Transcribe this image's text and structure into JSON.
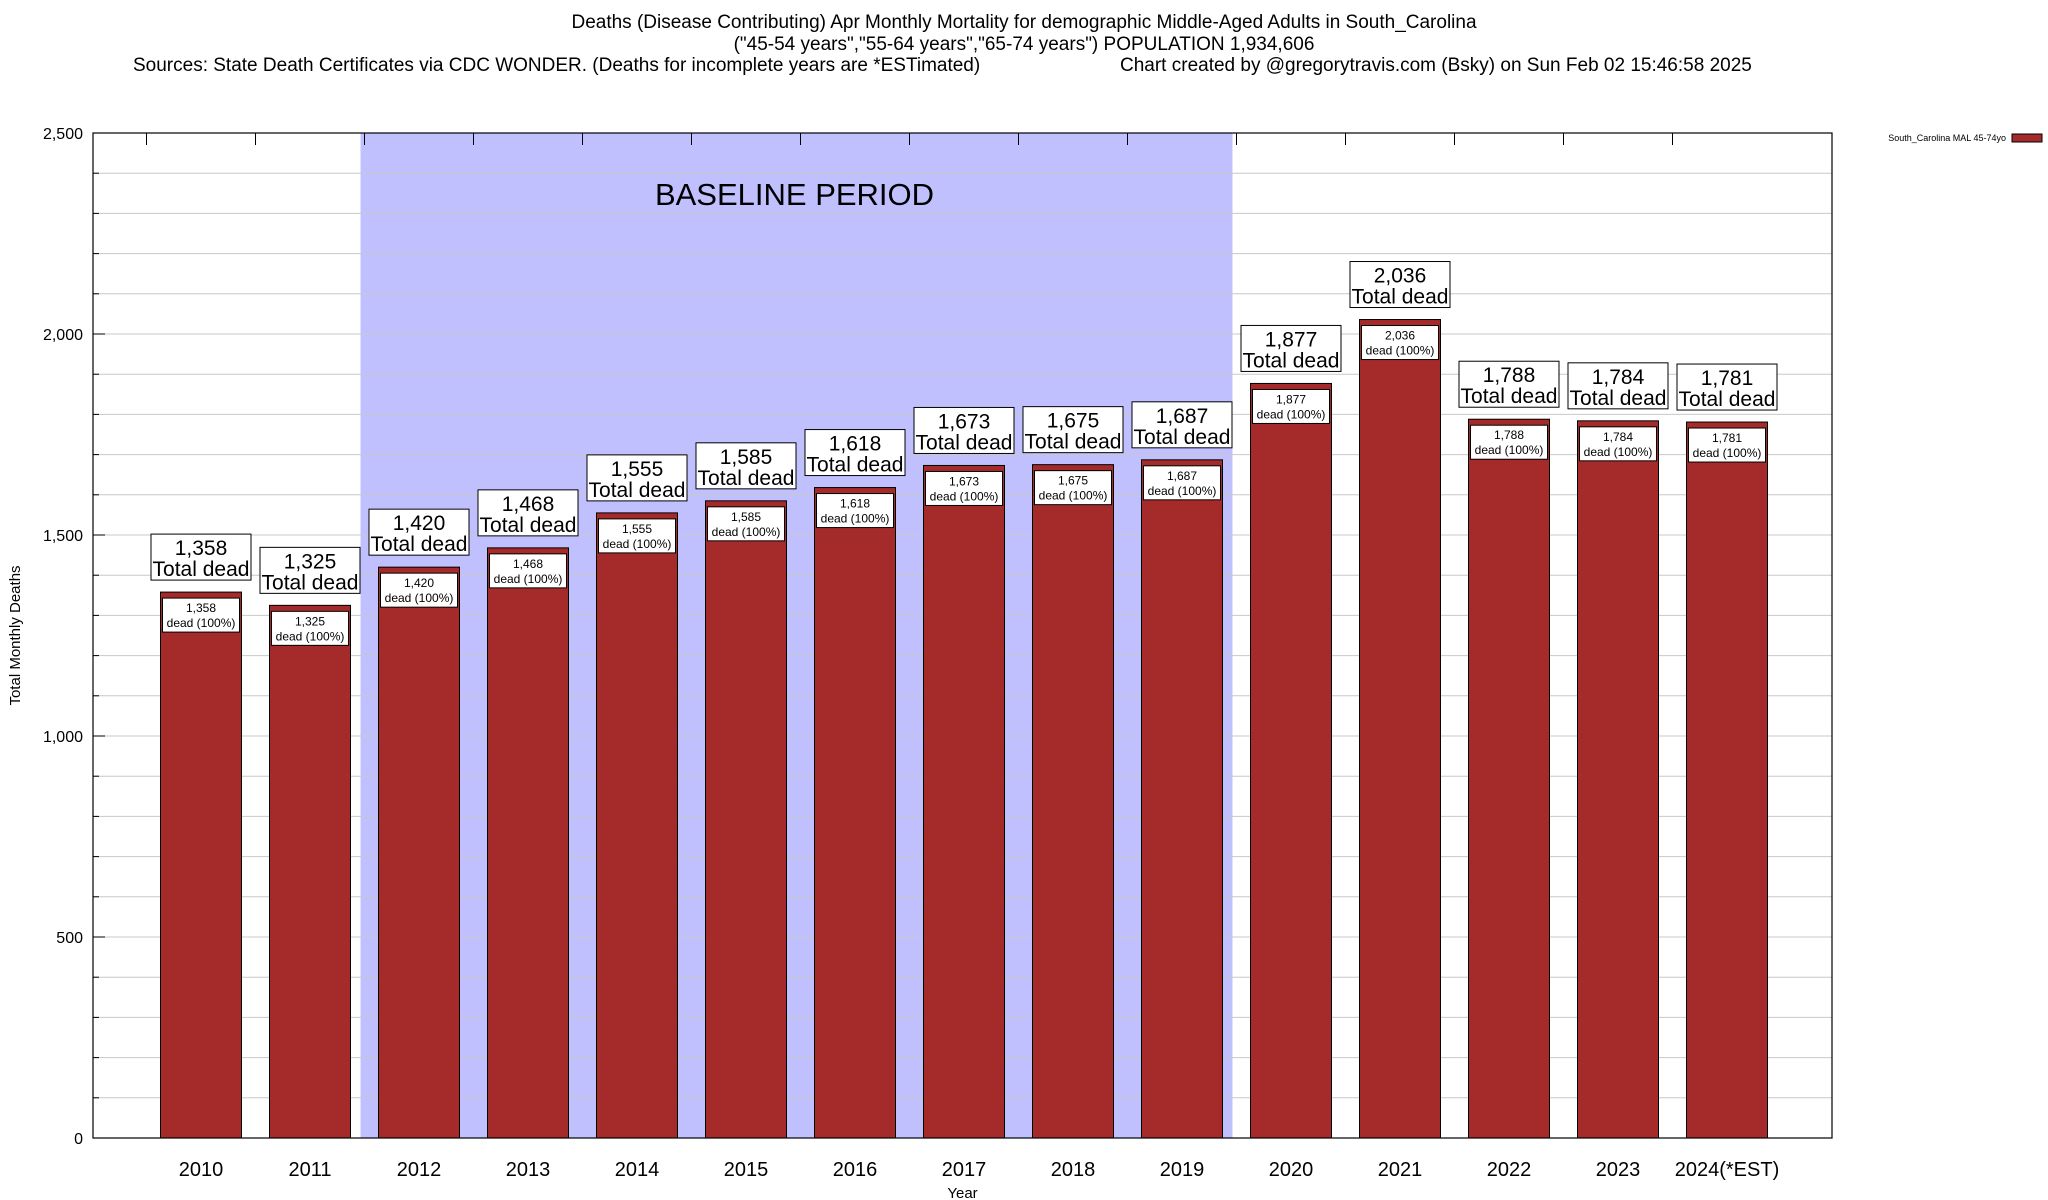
{
  "chart_data": {
    "type": "bar",
    "title": "Deaths (Disease Contributing) Apr Monthly Mortality for demographic Middle-Aged Adults in South_Carolina",
    "subtitle": "(\"45-54 years\",\"55-64 years\",\"65-74 years\") POPULATION 1,934,606",
    "sources": "Sources: State Death Certificates via CDC WONDER. (Deaths for incomplete years are *ESTimated)",
    "credit": "Chart created by @gregorytravis.com (Bsky) on Sun Feb 02 15:46:58 2025",
    "xlabel": "Year",
    "ylabel": "Total Monthly Deaths",
    "ylim": [
      0,
      2500
    ],
    "yticks": [
      0,
      500,
      1000,
      1500,
      2000,
      2500
    ],
    "ytick_labels": [
      "0",
      "500",
      "1,000",
      "1,500",
      "2,000",
      "2,500"
    ],
    "legend": {
      "label": "South_Carolina MAL 45-74yo",
      "position": "top-right",
      "color": "#a52a2a"
    },
    "baseline": {
      "label": "BASELINE PERIOD",
      "from": "2012",
      "to": "2019",
      "color": "#c0c0ff"
    },
    "categories": [
      "2010",
      "2011",
      "2012",
      "2013",
      "2014",
      "2015",
      "2016",
      "2017",
      "2018",
      "2019",
      "2020",
      "2021",
      "2022",
      "2023",
      "2024(*EST)"
    ],
    "values": [
      1358,
      1325,
      1420,
      1468,
      1555,
      1585,
      1618,
      1673,
      1675,
      1687,
      1877,
      2036,
      1788,
      1784,
      1781
    ],
    "value_labels": [
      "1,358",
      "1,325",
      "1,420",
      "1,468",
      "1,555",
      "1,585",
      "1,618",
      "1,673",
      "1,675",
      "1,687",
      "1,877",
      "2,036",
      "1,788",
      "1,784",
      "1,781"
    ],
    "total_suffix": "Total dead",
    "inner_suffix": "dead (100%)"
  }
}
